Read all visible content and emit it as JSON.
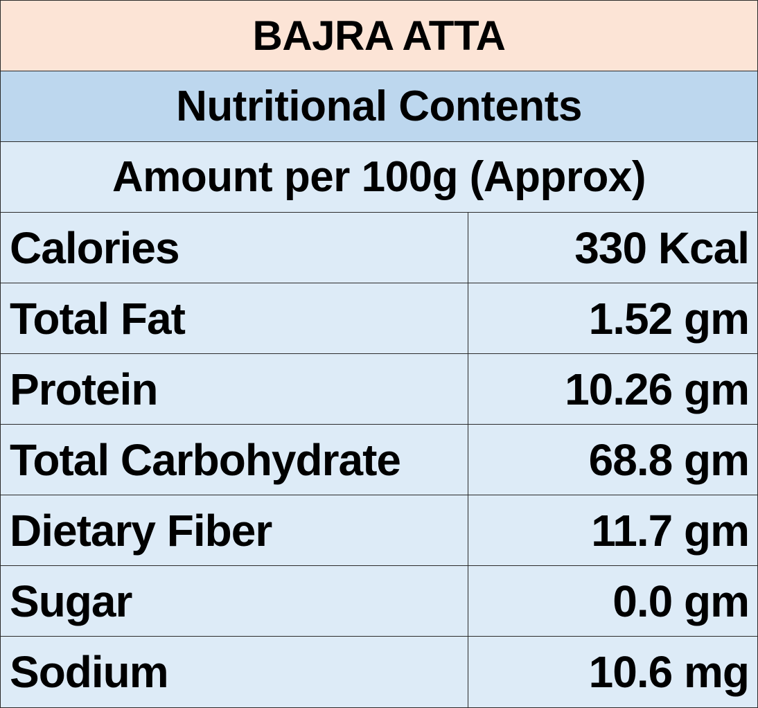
{
  "title": "BAJRA ATTA",
  "subtitle": "Nutritional Contents",
  "amount_note": "Amount per 100g (Approx)",
  "nutrients": [
    {
      "label": "Calories",
      "value": "330 Kcal"
    },
    {
      "label": "Total Fat",
      "value": "1.52 gm"
    },
    {
      "label": "Protein",
      "value": "10.26 gm"
    },
    {
      "label": "Total Carbohydrate",
      "value": "68.8 gm"
    },
    {
      "label": "Dietary Fiber",
      "value": "11.7 gm"
    },
    {
      "label": "Sugar",
      "value": "0.0 gm"
    },
    {
      "label": "Sodium",
      "value": "10.6 mg"
    }
  ],
  "colors": {
    "title_bg": "#fce4d6",
    "subtitle_bg": "#bdd7ee",
    "body_bg": "#ddebf7",
    "border": "#2a2a2a",
    "text": "#000000"
  }
}
